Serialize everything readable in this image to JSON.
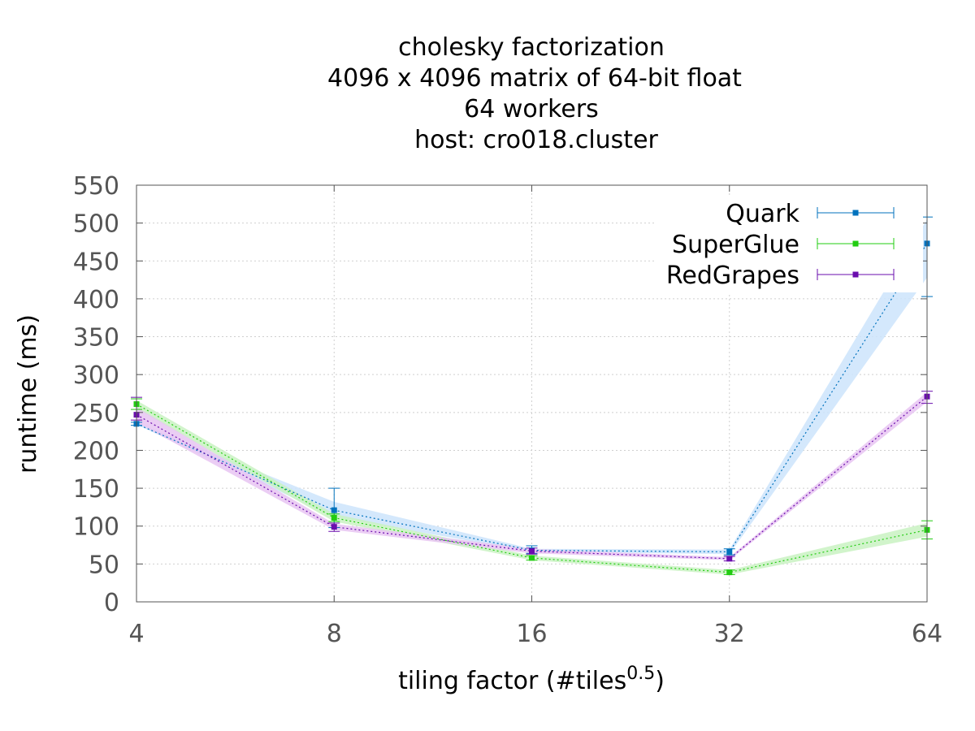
{
  "chart_data": {
    "type": "line",
    "title_lines": [
      "cholesky factorization",
      "4096 x 4096 matrix of 64-bit float",
      "64 workers",
      "host: cro018.cluster"
    ],
    "xlabel_main": "tiling factor (#tiles",
    "xlabel_sup": "0.5",
    "xlabel_close": ")",
    "ylabel": "runtime (ms)",
    "x_scale": "log2",
    "x": [
      4,
      8,
      16,
      32,
      64
    ],
    "x_tick_labels": [
      "4",
      "8",
      "16",
      "32",
      "64"
    ],
    "ylim": [
      0,
      550
    ],
    "y_ticks": [
      0,
      50,
      100,
      150,
      200,
      250,
      300,
      350,
      400,
      450,
      500,
      550
    ],
    "grid": true,
    "legend_position": "top-right",
    "series": [
      {
        "name": "Quark",
        "color": "#0072bd",
        "band_color": "#cce4fb",
        "values": [
          235,
          121,
          68,
          66,
          473
        ],
        "err_low": [
          233,
          98,
          64,
          62,
          403
        ],
        "err_high": [
          237,
          150,
          74,
          70,
          508
        ],
        "band_low": [
          234,
          112,
          66,
          63,
          428
        ],
        "band_high": [
          237,
          132,
          70,
          69,
          505
        ]
      },
      {
        "name": "SuperGlue",
        "color": "#22cc11",
        "band_color": "#c9f2c2",
        "values": [
          261,
          111,
          58,
          39,
          95
        ],
        "err_low": [
          254,
          106,
          55,
          36,
          83
        ],
        "err_high": [
          268,
          116,
          61,
          42,
          107
        ],
        "band_low": [
          255,
          106,
          55,
          36,
          86
        ],
        "band_high": [
          266,
          116,
          61,
          42,
          104
        ]
      },
      {
        "name": "RedGrapes",
        "color": "#6a0dad",
        "band_color": "#e8c4f2",
        "values": [
          247,
          99,
          67,
          57,
          271
        ],
        "err_low": [
          240,
          93,
          63,
          54,
          262
        ],
        "err_high": [
          270,
          104,
          71,
          60,
          278
        ],
        "band_low": [
          237,
          95,
          64,
          55,
          264
        ],
        "band_high": [
          257,
          103,
          70,
          59,
          277
        ]
      }
    ]
  }
}
